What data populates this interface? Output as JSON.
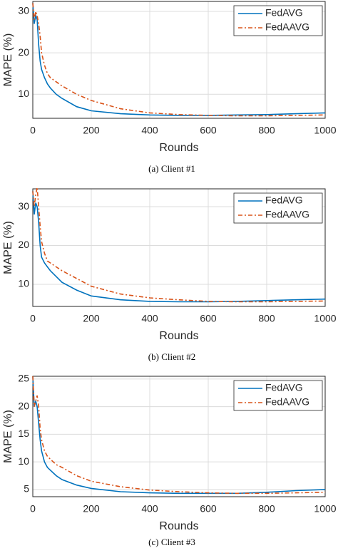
{
  "chart_data": [
    {
      "type": "line",
      "caption": "(a) Client #1",
      "xlabel": "Rounds",
      "ylabel": "MAPE (%)",
      "x": [
        0,
        5,
        10,
        15,
        20,
        25,
        30,
        40,
        50,
        60,
        80,
        100,
        150,
        200,
        300,
        400,
        500,
        600,
        700,
        800,
        900,
        1000
      ],
      "series": [
        {
          "name": "FedAVG",
          "color": "#0072bd",
          "dash": "solid",
          "values": [
            32,
            27,
            29,
            28,
            22,
            18,
            16,
            14,
            12.5,
            11.5,
            10,
            9,
            7,
            6,
            5.3,
            5.0,
            4.9,
            4.9,
            5.0,
            5.1,
            5.3,
            5.5
          ]
        },
        {
          "name": "FedAAVG",
          "color": "#d95319",
          "dash": "dashdot",
          "values": [
            32,
            28,
            30,
            29,
            27,
            24,
            20,
            17,
            15,
            14,
            13,
            12,
            10,
            8.5,
            6.5,
            5.5,
            5.1,
            4.9,
            4.8,
            4.8,
            4.9,
            5.0
          ]
        }
      ],
      "xlim": [
        0,
        1000
      ],
      "xticks": [
        0,
        200,
        400,
        600,
        800,
        1000
      ],
      "ylim": [
        4.2,
        32.4
      ],
      "yticks": [
        10,
        20,
        30
      ],
      "grid": true,
      "legend": "upper right"
    },
    {
      "type": "line",
      "caption": "(b) Client #2",
      "xlabel": "Rounds",
      "ylabel": "MAPE (%)",
      "x": [
        0,
        5,
        10,
        15,
        20,
        25,
        30,
        40,
        50,
        60,
        80,
        100,
        150,
        200,
        300,
        400,
        500,
        600,
        700,
        800,
        900,
        1000
      ],
      "series": [
        {
          "name": "FedAVG",
          "color": "#0072bd",
          "dash": "solid",
          "values": [
            34,
            28,
            31,
            30,
            26,
            20,
            17,
            15.5,
            14.5,
            13.5,
            12,
            10.5,
            8.5,
            7,
            6,
            5.6,
            5.5,
            5.5,
            5.6,
            5.8,
            6.0,
            6.2
          ]
        },
        {
          "name": "FedAAVG",
          "color": "#d95319",
          "dash": "dashdot",
          "values": [
            34,
            30,
            33,
            35,
            30,
            25,
            21,
            18,
            16,
            15.5,
            14.5,
            13.5,
            11.5,
            9.5,
            7.5,
            6.5,
            6,
            5.6,
            5.5,
            5.5,
            5.6,
            5.7
          ]
        }
      ],
      "xlim": [
        0,
        1000
      ],
      "xticks": [
        0,
        200,
        400,
        600,
        800,
        1000
      ],
      "ylim": [
        4.3,
        34.6
      ],
      "yticks": [
        10,
        20,
        30
      ],
      "grid": true,
      "legend": "upper right"
    },
    {
      "type": "line",
      "caption": "(c) Client #3",
      "xlabel": "Rounds",
      "ylabel": "MAPE (%)",
      "x": [
        0,
        5,
        10,
        15,
        20,
        25,
        30,
        40,
        50,
        60,
        80,
        100,
        150,
        200,
        300,
        400,
        500,
        600,
        700,
        800,
        900,
        1000
      ],
      "series": [
        {
          "name": "FedAVG",
          "color": "#0072bd",
          "dash": "solid",
          "values": [
            25.5,
            20,
            21,
            20,
            17,
            14,
            12,
            10,
            9,
            8.5,
            7.5,
            6.8,
            5.8,
            5.2,
            4.6,
            4.4,
            4.3,
            4.3,
            4.3,
            4.5,
            4.8,
            5.0
          ]
        },
        {
          "name": "FedAAVG",
          "color": "#d95319",
          "dash": "dashdot",
          "values": [
            25.5,
            20,
            21,
            22,
            20,
            16,
            14,
            12,
            11,
            10.5,
            9.5,
            9,
            7.5,
            6.5,
            5.5,
            4.9,
            4.6,
            4.4,
            4.3,
            4.3,
            4.4,
            4.5
          ]
        }
      ],
      "xlim": [
        0,
        1000
      ],
      "xticks": [
        0,
        200,
        400,
        600,
        800,
        1000
      ],
      "ylim": [
        3.7,
        25.5
      ],
      "yticks": [
        5,
        10,
        15,
        20,
        25
      ],
      "grid": true,
      "legend": "upper right"
    }
  ]
}
